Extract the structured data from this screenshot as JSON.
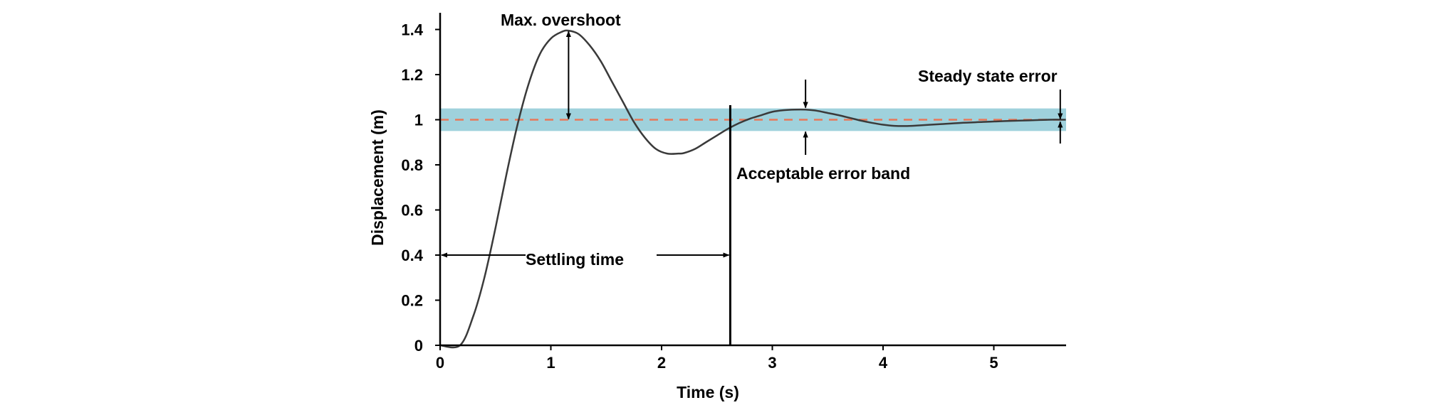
{
  "chart_data": {
    "type": "line",
    "title": "",
    "xlabel": "Time (s)",
    "ylabel": "Displacement (m)",
    "xlim": [
      0,
      5.65
    ],
    "ylim": [
      0,
      1.45
    ],
    "x_ticks": [
      "0",
      "1",
      "2",
      "3",
      "4",
      "5"
    ],
    "y_ticks": [
      "0",
      "0.2",
      "0.4",
      "0.6",
      "0.8",
      "1",
      "1.2",
      "1.4"
    ],
    "grid": false,
    "series": [
      {
        "name": "Displacement",
        "color": "#3a3a3a",
        "x": [
          0,
          0.18,
          0.3,
          0.4,
          0.5,
          0.6,
          0.7,
          0.8,
          0.9,
          1.0,
          1.1,
          1.16,
          1.25,
          1.35,
          1.45,
          1.55,
          1.65,
          1.75,
          1.85,
          1.95,
          2.05,
          2.15,
          2.2,
          2.3,
          2.4,
          2.5,
          2.6,
          2.7,
          2.8,
          2.9,
          3.0,
          3.1,
          3.2,
          3.3,
          3.4,
          3.5,
          3.6,
          3.7,
          3.8,
          3.9,
          4.0,
          4.1,
          4.2,
          4.3,
          4.5,
          4.7,
          4.9,
          5.1,
          5.3,
          5.5,
          5.65
        ],
        "y": [
          0,
          0,
          0.13,
          0.3,
          0.52,
          0.76,
          0.98,
          1.16,
          1.29,
          1.36,
          1.39,
          1.395,
          1.38,
          1.33,
          1.26,
          1.17,
          1.08,
          0.99,
          0.92,
          0.87,
          0.85,
          0.85,
          0.852,
          0.87,
          0.9,
          0.93,
          0.96,
          0.985,
          1.005,
          1.02,
          1.035,
          1.042,
          1.045,
          1.045,
          1.04,
          1.03,
          1.02,
          1.008,
          0.996,
          0.986,
          0.978,
          0.973,
          0.972,
          0.974,
          0.98,
          0.986,
          0.99,
          0.994,
          0.997,
          1.0,
          1.0
        ]
      }
    ],
    "setpoint": {
      "value": 1.0,
      "color": "#e8785a"
    },
    "error_band": {
      "lower": 0.95,
      "upper": 1.05,
      "color": "#9fd1dc"
    },
    "settling_time": 2.62,
    "max_overshoot": {
      "x": 1.16,
      "peak": 1.395
    },
    "band_marker_x": 3.3,
    "steady_state_marker_x": 5.6,
    "annotations": {
      "max_overshoot": "Max. overshoot",
      "acceptable_error_band": "Acceptable error band",
      "steady_state_error": "Steady state error",
      "settling_time": "Settling time"
    }
  }
}
